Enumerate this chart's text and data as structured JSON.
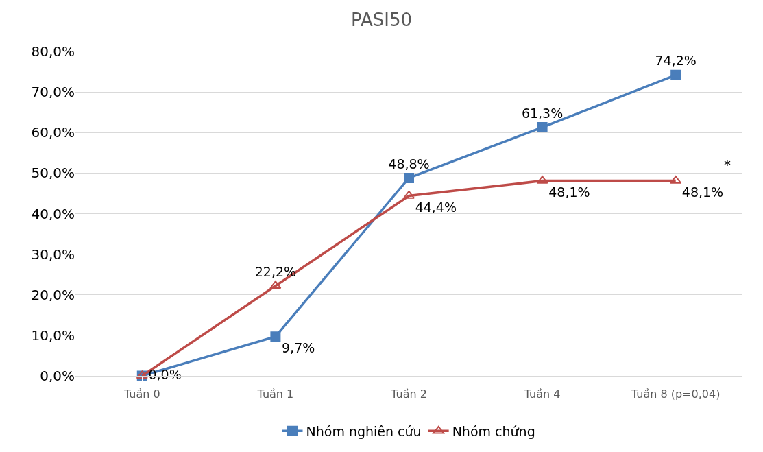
{
  "chart_data": {
    "type": "line",
    "title": "PASI50",
    "categories": [
      "Tuần 0",
      "Tuần 1",
      "Tuần 2",
      "Tuần 4",
      "Tuần 8 (p=0,04)"
    ],
    "series": [
      {
        "name": "Nhóm nghiên cứu",
        "color": "#4a7ebb",
        "marker": "square",
        "values": [
          0,
          9.7,
          48.8,
          61.3,
          74.2
        ],
        "value_labels": [
          null,
          "9,7%",
          "48,8%",
          "61,3%",
          "74,2%"
        ]
      },
      {
        "name": "Nhóm chứng",
        "color": "#be4b48",
        "marker": "triangle",
        "values": [
          0,
          22.2,
          44.4,
          48.1,
          48.1
        ],
        "value_labels": [
          "0,0%",
          "22,2%",
          "44,4%",
          "48,1%",
          "48,1%"
        ]
      }
    ],
    "ylim": [
      0,
      80
    ],
    "yticks": [
      {
        "value": 0,
        "label": "0,0%"
      },
      {
        "value": 10,
        "label": "10,0%"
      },
      {
        "value": 20,
        "label": "20,0%"
      },
      {
        "value": 30,
        "label": "30,0%"
      },
      {
        "value": 40,
        "label": "40,0%"
      },
      {
        "value": 50,
        "label": "50,0%"
      },
      {
        "value": 60,
        "label": "60,0%"
      },
      {
        "value": 70,
        "label": "70,0%"
      },
      {
        "value": 80,
        "label": "80,0%"
      }
    ],
    "annotations": [
      "*"
    ],
    "grid": "y",
    "legend": "bottom",
    "line_style": "solid"
  }
}
